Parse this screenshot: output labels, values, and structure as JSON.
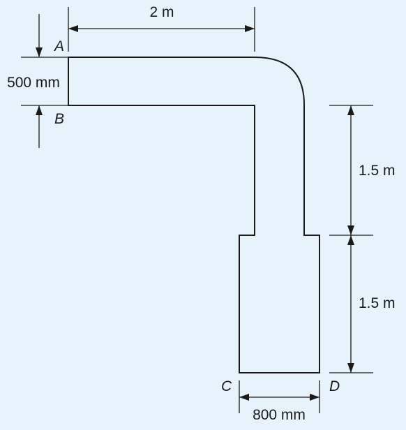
{
  "points": {
    "a": "A",
    "b": "B",
    "c": "C",
    "d": "D"
  },
  "dimensions": {
    "pipe_length": "2 m",
    "inlet_width": "500 mm",
    "upper_height": "1.5 m",
    "lower_height": "1.5 m",
    "outlet_width": "800 mm"
  },
  "colors": {
    "background": "#e6f3fb",
    "line": "#1a1a1a"
  }
}
